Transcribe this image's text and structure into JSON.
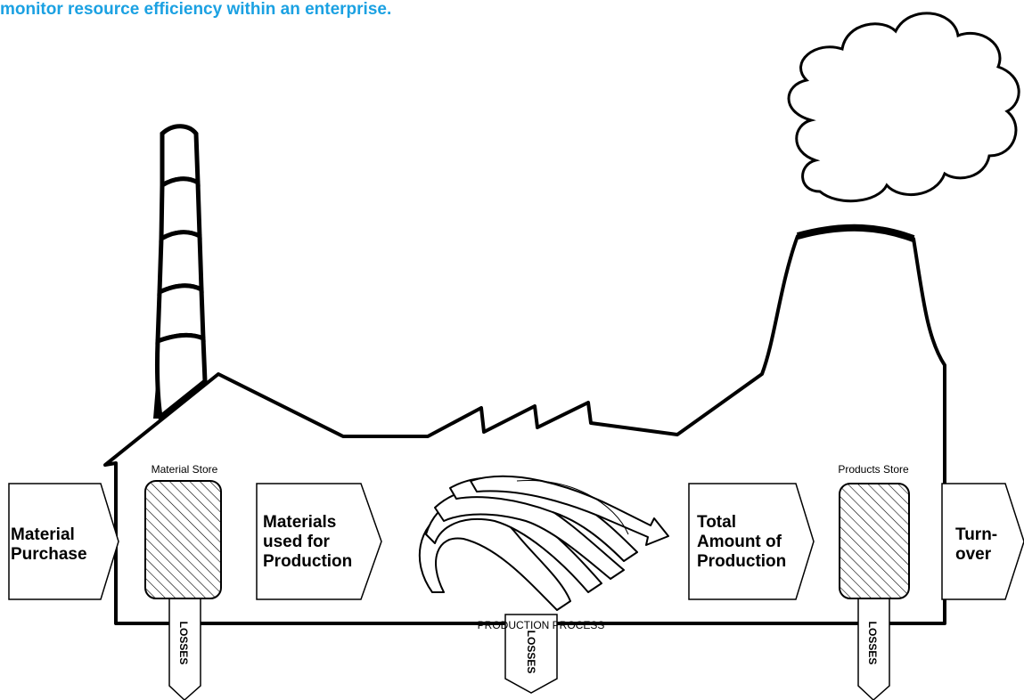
{
  "header": {
    "caption": "monitor resource efficiency within an enterprise."
  },
  "stores": [
    {
      "label": "Material Store"
    },
    {
      "label": "Products Store"
    }
  ],
  "flows": [
    {
      "lines": [
        "Material",
        "Purchase"
      ]
    },
    {
      "lines": [
        "Materials",
        "used for",
        "Production"
      ]
    },
    {
      "lines": [
        "Total",
        "Amount of",
        "Production"
      ]
    },
    {
      "lines": [
        "Turn-",
        "over"
      ]
    }
  ],
  "process": {
    "label": "PRODUCTION PROCESS"
  },
  "losses": [
    "LOSSES",
    "LOSSES",
    "LOSSES"
  ]
}
